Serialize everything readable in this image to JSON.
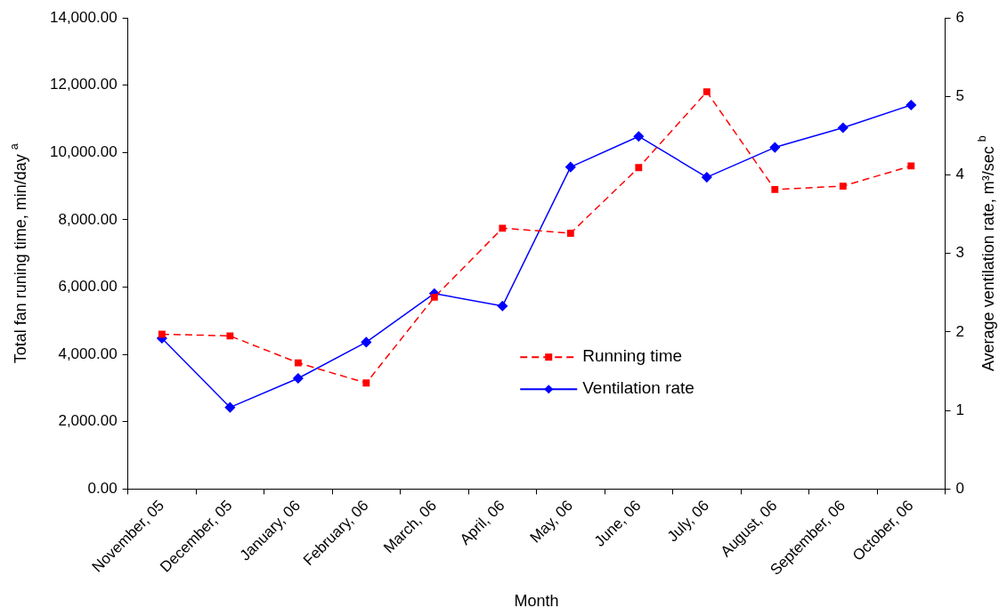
{
  "chart_data": {
    "type": "line",
    "xlabel": "Month",
    "ylabel": "Total fan runing time, min/day $^{a}$",
    "y2label": "Average ventilation rate, m³/sec $^{b}$",
    "categories": [
      "November, 05",
      "December, 05",
      "January, 06",
      "February, 06",
      "March, 06",
      "April, 06",
      "May, 06",
      "June, 06",
      "July, 06",
      "August, 06",
      "September, 06",
      "October, 06"
    ],
    "series": [
      {
        "name": "Running time",
        "color": "#ff0000",
        "marker": "square",
        "line_style": "dashed",
        "values": [
          4600,
          4550,
          3750,
          3150,
          5700,
          7750,
          7600,
          9550,
          11800,
          8900,
          9000,
          9600
        ]
      },
      {
        "name": "Ventilation rate",
        "color": "#0000ff",
        "marker": "diamond",
        "line_style": "solid",
        "axis": "y2",
        "values": [
          1.92,
          1.04,
          1.41,
          1.87,
          2.49,
          2.33,
          4.1,
          4.49,
          3.97,
          4.35,
          4.6,
          4.89
        ]
      }
    ],
    "ylim": [
      0,
      14000
    ],
    "yticks": [
      {
        "value": 0,
        "label": "0.00"
      },
      {
        "value": 2000,
        "label": "2,000.00"
      },
      {
        "value": 4000,
        "label": "4,000.00"
      },
      {
        "value": 6000,
        "label": "6,000.00"
      },
      {
        "value": 8000,
        "label": "8,000.00"
      },
      {
        "value": 10000,
        "label": "10,000.00"
      },
      {
        "value": 12000,
        "label": "12,000.00"
      },
      {
        "value": 14000,
        "label": "14,000.00"
      }
    ],
    "y2lim": [
      0,
      6
    ],
    "y2ticks": [
      0,
      1,
      2,
      3,
      4,
      5,
      6
    ],
    "grid": false,
    "legend": "bottom"
  }
}
